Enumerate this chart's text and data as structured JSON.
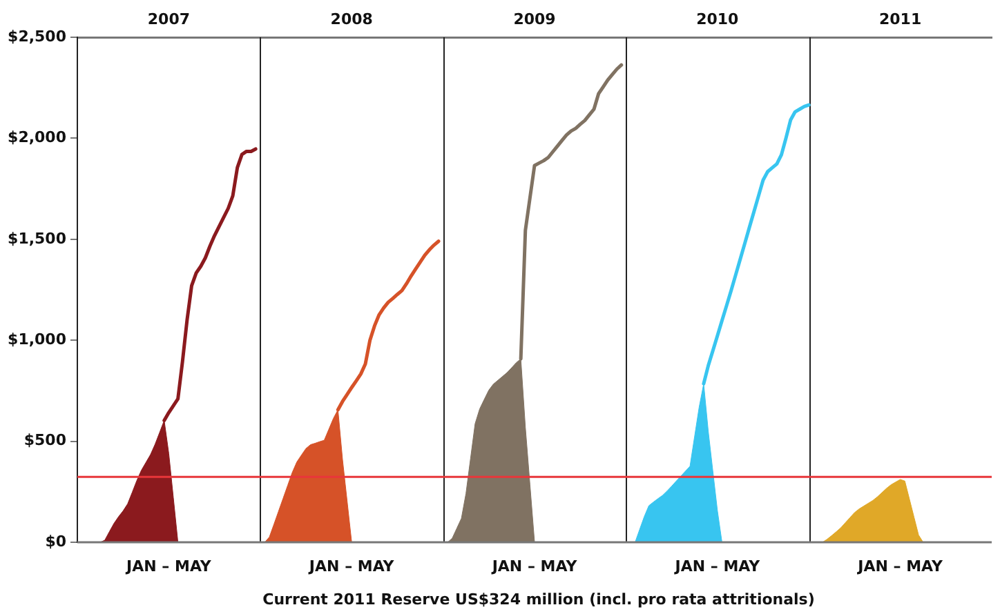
{
  "chart_data": {
    "type": "line",
    "xlabel": "JAN – MAY",
    "annotations": [
      "Current 2011 Reserve US$324 million (incl. pro rata attritionals)"
    ],
    "categories": [
      null,
      null,
      null,
      null,
      null,
      null,
      null,
      null,
      null,
      null,
      null,
      null,
      null,
      null,
      null,
      null,
      null,
      null,
      null,
      null,
      "2007",
      null,
      null,
      null,
      null,
      null,
      null,
      null,
      null,
      null,
      null,
      null,
      null,
      null,
      null,
      null,
      null,
      null,
      null,
      null,
      null,
      null,
      null,
      null,
      null,
      null,
      null,
      null,
      null,
      null,
      null,
      null,
      null,
      null,
      null,
      null,
      null,
      null,
      null,
      null,
      "2008",
      null,
      null,
      null,
      null,
      null,
      null,
      null,
      null,
      null,
      null,
      null,
      null,
      null,
      null,
      null,
      null,
      null,
      null,
      null,
      null,
      null,
      null,
      null,
      null,
      null,
      null,
      null,
      null,
      null,
      null,
      null,
      null,
      null,
      null,
      null,
      null,
      null,
      null,
      null,
      "2009",
      null,
      null,
      null,
      null,
      null,
      null,
      null,
      null,
      null,
      null,
      null,
      null,
      null,
      null,
      null,
      null,
      null,
      null,
      null,
      null,
      null,
      null,
      null,
      null,
      null,
      null,
      null,
      null,
      null,
      null,
      null,
      null,
      null,
      null,
      null,
      null,
      null,
      null,
      null,
      "2010",
      null,
      null,
      null,
      null,
      null,
      null,
      null,
      null,
      null,
      null,
      null,
      null,
      null,
      null,
      null,
      null,
      null,
      null,
      null,
      null,
      null,
      null,
      null,
      null,
      null,
      null,
      null,
      null,
      null,
      null,
      null,
      null,
      null,
      null,
      null,
      null,
      null,
      null,
      null,
      "2011",
      null,
      null,
      null,
      null,
      null,
      null,
      null,
      null,
      null,
      null,
      null,
      null,
      null,
      null,
      null,
      null,
      null,
      null,
      null,
      null
    ],
    "ylim": [
      0,
      2500
    ],
    "yticks": [
      {
        "value": 0,
        "label": "$0"
      },
      {
        "value": 500,
        "label": "$500"
      },
      {
        "value": 1000,
        "label": "$1,000"
      },
      {
        "value": 1500,
        "label": "$1,500"
      },
      {
        "value": 2000,
        "label": "$2,000"
      },
      {
        "value": 2500,
        "label": "$2,500"
      }
    ],
    "ref_lines": [
      {
        "axis": "y",
        "value": 324,
        "color": "#e8363a"
      }
    ],
    "series": [
      {
        "type": "area",
        "color": "#8b1a1e",
        "values": [
          null,
          null,
          null,
          null,
          null,
          0,
          10,
          52,
          93,
          126,
          155,
          190,
          247,
          305,
          356,
          395,
          434,
          485,
          544,
          603,
          439,
          220,
          0,
          null,
          null,
          null,
          null,
          null,
          null,
          null,
          null,
          null,
          null,
          null,
          null,
          null,
          null,
          null,
          null,
          null,
          null,
          null,
          null,
          null,
          null,
          null,
          null,
          null,
          null,
          null,
          null,
          null,
          null,
          null,
          null,
          null,
          null,
          null,
          null,
          null,
          null,
          null,
          null,
          null,
          null,
          null,
          null,
          null,
          null,
          null,
          null,
          null,
          null,
          null,
          null,
          null,
          null,
          null,
          null,
          null,
          null,
          null,
          null,
          null,
          null,
          null,
          null,
          null,
          null,
          null,
          null,
          null,
          null,
          null,
          null,
          null,
          null,
          null,
          null,
          null,
          null,
          null,
          null,
          null,
          null,
          null,
          null,
          null,
          null,
          null,
          null,
          null,
          null,
          null,
          null,
          null,
          null,
          null,
          null,
          null,
          null,
          null,
          null,
          null,
          null,
          null,
          null,
          null,
          null,
          null,
          null,
          null,
          null,
          null,
          null,
          null,
          null,
          null,
          null,
          null,
          null,
          null,
          null,
          null,
          null,
          null,
          null,
          null,
          null,
          null,
          null,
          null,
          null,
          null,
          null,
          null,
          null,
          null,
          null,
          null,
          null,
          null,
          null,
          null,
          null,
          null,
          null,
          null,
          null,
          null,
          null,
          null,
          null,
          null,
          null,
          null,
          null,
          null,
          null,
          null,
          null,
          null,
          null,
          null,
          null,
          null,
          null,
          null,
          null,
          null,
          null,
          null,
          null,
          null,
          null,
          null,
          null,
          null,
          null,
          null,
          null
        ]
      },
      {
        "type": "line",
        "color": "#8b1a1e",
        "values": [
          null,
          null,
          null,
          null,
          null,
          null,
          null,
          null,
          null,
          null,
          null,
          null,
          null,
          null,
          null,
          null,
          null,
          null,
          null,
          603,
          642,
          676,
          710,
          895,
          1100,
          1270,
          1333,
          1366,
          1408,
          1466,
          1518,
          1563,
          1608,
          1653,
          1715,
          1855,
          1920,
          1935,
          1935,
          1947,
          null,
          null,
          null,
          null,
          null,
          null,
          null,
          null,
          null,
          null,
          null,
          null,
          null,
          null,
          null,
          null,
          null,
          null,
          null,
          null,
          null,
          null,
          null,
          null,
          null,
          null,
          null,
          null,
          null,
          null,
          null,
          null,
          null,
          null,
          null,
          null,
          null,
          null,
          null,
          null,
          null,
          null,
          null,
          null,
          null,
          null,
          null,
          null,
          null,
          null,
          null,
          null,
          null,
          null,
          null,
          null,
          null,
          null,
          null,
          null,
          null,
          null,
          null,
          null,
          null,
          null,
          null,
          null,
          null,
          null,
          null,
          null,
          null,
          null,
          null,
          null,
          null,
          null,
          null,
          null,
          null,
          null,
          null,
          null,
          null,
          null,
          null,
          null,
          null,
          null,
          null,
          null,
          null,
          null,
          null,
          null,
          null,
          null,
          null,
          null,
          null,
          null,
          null,
          null,
          null,
          null,
          null,
          null,
          null,
          null,
          null,
          null,
          null,
          null,
          null,
          null,
          null,
          null,
          null,
          null,
          null,
          null,
          null,
          null,
          null,
          null,
          null,
          null,
          null,
          null,
          null,
          null,
          null,
          null,
          null,
          null,
          null,
          null,
          null,
          null,
          null,
          null,
          null,
          null,
          null,
          null,
          null,
          null,
          null,
          null,
          null,
          null,
          null,
          null,
          null,
          null,
          null,
          null,
          null,
          null,
          null
        ]
      },
      {
        "type": "area",
        "color": "#d65228",
        "values": [
          null,
          null,
          null,
          null,
          null,
          null,
          null,
          null,
          null,
          null,
          null,
          null,
          null,
          null,
          null,
          null,
          null,
          null,
          null,
          null,
          null,
          null,
          null,
          null,
          null,
          null,
          null,
          null,
          null,
          null,
          null,
          null,
          null,
          null,
          null,
          null,
          null,
          null,
          null,
          null,
          null,
          0,
          26,
          89,
          153,
          217,
          281,
          345,
          397,
          431,
          464,
          483,
          490,
          498,
          505,
          559,
          613,
          656,
          410,
          205,
          0,
          null,
          null,
          null,
          null,
          null,
          null,
          null,
          null,
          null,
          null,
          null,
          null,
          null,
          null,
          null,
          null,
          null,
          null,
          null,
          null,
          null,
          null,
          null,
          null,
          null,
          null,
          null,
          null,
          null,
          null,
          null,
          null,
          null,
          null,
          null,
          null,
          null,
          null,
          null,
          null,
          null,
          null,
          null,
          null,
          null,
          null,
          null,
          null,
          null,
          null,
          null,
          null,
          null,
          null,
          null,
          null,
          null,
          null,
          null,
          null,
          null,
          null,
          null,
          null,
          null,
          null,
          null,
          null,
          null,
          null,
          null,
          null,
          null,
          null,
          null,
          null,
          null,
          null,
          null,
          null,
          null,
          null,
          null,
          null,
          null,
          null,
          null,
          null,
          null,
          null,
          null,
          null,
          null,
          null,
          null,
          null,
          null,
          null,
          null,
          null,
          null,
          null,
          null,
          null,
          null,
          null,
          null,
          null,
          null,
          null,
          null,
          null,
          null,
          null,
          null,
          null,
          null,
          null,
          null,
          null,
          null,
          null,
          null,
          null,
          null,
          null,
          null,
          null,
          null,
          null,
          null,
          null,
          null,
          null,
          null,
          null,
          null,
          null,
          null,
          null
        ]
      },
      {
        "type": "line",
        "color": "#d65228",
        "values": [
          null,
          null,
          null,
          null,
          null,
          null,
          null,
          null,
          null,
          null,
          null,
          null,
          null,
          null,
          null,
          null,
          null,
          null,
          null,
          null,
          null,
          null,
          null,
          null,
          null,
          null,
          null,
          null,
          null,
          null,
          null,
          null,
          null,
          null,
          null,
          null,
          null,
          null,
          null,
          null,
          null,
          null,
          null,
          null,
          null,
          null,
          null,
          null,
          null,
          null,
          null,
          null,
          null,
          null,
          null,
          null,
          null,
          656,
          697,
          731,
          766,
          799,
          833,
          883,
          1000,
          1071,
          1126,
          1160,
          1188,
          1207,
          1227,
          1246,
          1280,
          1318,
          1353,
          1387,
          1421,
          1448,
          1471,
          1490,
          null,
          null,
          null,
          null,
          null,
          null,
          null,
          null,
          null,
          null,
          null,
          null,
          null,
          null,
          null,
          null,
          null,
          null,
          null,
          null,
          null,
          null,
          null,
          null,
          null,
          null,
          null,
          null,
          null,
          null,
          null,
          null,
          null,
          null,
          null,
          null,
          null,
          null,
          null,
          null,
          null,
          null,
          null,
          null,
          null,
          null,
          null,
          null,
          null,
          null,
          null,
          null,
          null,
          null,
          null,
          null,
          null,
          null,
          null,
          null,
          null,
          null,
          null,
          null,
          null,
          null,
          null,
          null,
          null,
          null,
          null,
          null,
          null,
          null,
          null,
          null,
          null,
          null,
          null,
          null,
          null,
          null,
          null,
          null,
          null,
          null,
          null,
          null,
          null,
          null,
          null,
          null,
          null,
          null,
          null,
          null,
          null,
          null,
          null,
          null,
          null,
          null,
          null,
          null,
          null,
          null,
          null,
          null,
          null,
          null,
          null,
          null,
          null,
          null,
          null,
          null,
          null,
          null,
          null,
          null,
          null
        ]
      },
      {
        "type": "area",
        "color": "#807262",
        "values": [
          null,
          null,
          null,
          null,
          null,
          null,
          null,
          null,
          null,
          null,
          null,
          null,
          null,
          null,
          null,
          null,
          null,
          null,
          null,
          null,
          null,
          null,
          null,
          null,
          null,
          null,
          null,
          null,
          null,
          null,
          null,
          null,
          null,
          null,
          null,
          null,
          null,
          null,
          null,
          null,
          null,
          null,
          null,
          null,
          null,
          null,
          null,
          null,
          null,
          null,
          null,
          null,
          null,
          null,
          null,
          null,
          null,
          null,
          null,
          null,
          null,
          null,
          null,
          null,
          null,
          null,
          null,
          null,
          null,
          null,
          null,
          null,
          null,
          null,
          null,
          null,
          null,
          null,
          null,
          null,
          null,
          0,
          20,
          69,
          118,
          241,
          414,
          587,
          660,
          707,
          753,
          783,
          802,
          821,
          840,
          864,
          889,
          908,
          568,
          284,
          0,
          null,
          null,
          null,
          null,
          null,
          null,
          null,
          null,
          null,
          null,
          null,
          null,
          null,
          null,
          null,
          null,
          null,
          null,
          null,
          null,
          null,
          null,
          null,
          null,
          null,
          null,
          null,
          null,
          null,
          null,
          null,
          null,
          null,
          null,
          null,
          null,
          null,
          null,
          null,
          null,
          null,
          null,
          null,
          null,
          null,
          null,
          null,
          null,
          null,
          null,
          null,
          null,
          null,
          null,
          null,
          null,
          null,
          null,
          null,
          null,
          null,
          null,
          null,
          null,
          null,
          null,
          null,
          null,
          null,
          null,
          null,
          null,
          null,
          null,
          null,
          null,
          null,
          null,
          null,
          null,
          null,
          null,
          null,
          null,
          null,
          null,
          null,
          null,
          null,
          null,
          null,
          null,
          null,
          null,
          null,
          null,
          null,
          null,
          null,
          null
        ]
      },
      {
        "type": "line",
        "color": "#807262",
        "values": [
          null,
          null,
          null,
          null,
          null,
          null,
          null,
          null,
          null,
          null,
          null,
          null,
          null,
          null,
          null,
          null,
          null,
          null,
          null,
          null,
          null,
          null,
          null,
          null,
          null,
          null,
          null,
          null,
          null,
          null,
          null,
          null,
          null,
          null,
          null,
          null,
          null,
          null,
          null,
          null,
          null,
          null,
          null,
          null,
          null,
          null,
          null,
          null,
          null,
          null,
          null,
          null,
          null,
          null,
          null,
          null,
          null,
          null,
          null,
          null,
          null,
          null,
          null,
          null,
          null,
          null,
          null,
          null,
          null,
          null,
          null,
          null,
          null,
          null,
          null,
          null,
          null,
          null,
          null,
          null,
          null,
          null,
          null,
          null,
          null,
          null,
          null,
          null,
          null,
          null,
          null,
          null,
          null,
          null,
          null,
          null,
          null,
          908,
          1544,
          1705,
          1865,
          1877,
          1889,
          1905,
          1933,
          1961,
          1989,
          2016,
          2036,
          2049,
          2069,
          2088,
          2116,
          2144,
          2220,
          2254,
          2288,
          2315,
          2342,
          2363,
          null,
          null,
          null,
          null,
          null,
          null,
          null,
          null,
          null,
          null,
          null,
          null,
          null,
          null,
          null,
          null,
          null,
          null,
          null,
          null,
          null,
          null,
          null,
          null,
          null,
          null,
          null,
          null,
          null,
          null,
          null,
          null,
          null,
          null,
          null,
          null,
          null,
          null,
          null,
          null,
          null,
          null,
          null,
          null,
          null,
          null,
          null,
          null,
          null,
          null,
          null,
          null,
          null,
          null,
          null,
          null,
          null,
          null,
          null,
          null,
          null,
          null,
          null,
          null,
          null,
          null,
          null,
          null,
          null,
          null,
          null,
          null,
          null,
          null,
          null,
          null,
          null,
          null,
          null,
          null,
          null
        ]
      },
      {
        "type": "area",
        "color": "#38c5f0",
        "values": [
          null,
          null,
          null,
          null,
          null,
          null,
          null,
          null,
          null,
          null,
          null,
          null,
          null,
          null,
          null,
          null,
          null,
          null,
          null,
          null,
          null,
          null,
          null,
          null,
          null,
          null,
          null,
          null,
          null,
          null,
          null,
          null,
          null,
          null,
          null,
          null,
          null,
          null,
          null,
          null,
          null,
          null,
          null,
          null,
          null,
          null,
          null,
          null,
          null,
          null,
          null,
          null,
          null,
          null,
          null,
          null,
          null,
          null,
          null,
          null,
          null,
          null,
          null,
          null,
          null,
          null,
          null,
          null,
          null,
          null,
          null,
          null,
          null,
          null,
          null,
          null,
          null,
          null,
          null,
          null,
          null,
          null,
          null,
          null,
          null,
          null,
          null,
          null,
          null,
          null,
          null,
          null,
          null,
          null,
          null,
          null,
          null,
          null,
          null,
          null,
          null,
          null,
          null,
          null,
          null,
          null,
          null,
          null,
          null,
          null,
          null,
          null,
          null,
          null,
          null,
          null,
          null,
          null,
          null,
          null,
          null,
          null,
          0,
          64,
          127,
          181,
          199,
          216,
          232,
          254,
          278,
          303,
          327,
          352,
          376,
          522,
          668,
          785,
          550,
          353,
          157,
          0,
          null,
          null,
          null,
          null,
          null,
          null,
          null,
          null,
          null,
          null,
          null,
          null,
          null,
          null,
          null,
          null,
          null,
          null,
          null,
          null,
          null,
          null,
          null,
          null,
          null,
          null,
          null,
          null,
          null,
          null,
          null,
          null,
          null,
          null,
          null,
          null,
          null,
          null,
          null,
          null,
          null,
          null,
          null,
          null,
          null,
          null,
          null,
          null,
          null,
          null,
          null,
          null,
          null,
          null,
          null,
          null,
          null,
          null,
          null
        ]
      },
      {
        "type": "line",
        "color": "#38c5f0",
        "values": [
          null,
          null,
          null,
          null,
          null,
          null,
          null,
          null,
          null,
          null,
          null,
          null,
          null,
          null,
          null,
          null,
          null,
          null,
          null,
          null,
          null,
          null,
          null,
          null,
          null,
          null,
          null,
          null,
          null,
          null,
          null,
          null,
          null,
          null,
          null,
          null,
          null,
          null,
          null,
          null,
          null,
          null,
          null,
          null,
          null,
          null,
          null,
          null,
          null,
          null,
          null,
          null,
          null,
          null,
          null,
          null,
          null,
          null,
          null,
          null,
          null,
          null,
          null,
          null,
          null,
          null,
          null,
          null,
          null,
          null,
          null,
          null,
          null,
          null,
          null,
          null,
          null,
          null,
          null,
          null,
          null,
          null,
          null,
          null,
          null,
          null,
          null,
          null,
          null,
          null,
          null,
          null,
          null,
          null,
          null,
          null,
          null,
          null,
          null,
          null,
          null,
          null,
          null,
          null,
          null,
          null,
          null,
          null,
          null,
          null,
          null,
          null,
          null,
          null,
          null,
          null,
          null,
          null,
          null,
          null,
          null,
          null,
          null,
          null,
          null,
          null,
          null,
          null,
          null,
          null,
          null,
          null,
          null,
          null,
          null,
          null,
          null,
          785,
          874,
          948,
          1022,
          1097,
          1171,
          1246,
          1324,
          1402,
          1480,
          1559,
          1637,
          1715,
          1793,
          1835,
          1854,
          1873,
          1918,
          2001,
          2090,
          2131,
          2144,
          2157,
          2165,
          null,
          null,
          null,
          null,
          null,
          null,
          null,
          null,
          null,
          null,
          null,
          null,
          null,
          null,
          null,
          null,
          null,
          null,
          null,
          null,
          null,
          null,
          null,
          null,
          null,
          null,
          null,
          null,
          null,
          null,
          null,
          null,
          null,
          null,
          null,
          null,
          null,
          null,
          null,
          null
        ]
      },
      {
        "type": "area",
        "color": "#e0a828",
        "values": [
          null,
          null,
          null,
          null,
          null,
          null,
          null,
          null,
          null,
          null,
          null,
          null,
          null,
          null,
          null,
          null,
          null,
          null,
          null,
          null,
          null,
          null,
          null,
          null,
          null,
          null,
          null,
          null,
          null,
          null,
          null,
          null,
          null,
          null,
          null,
          null,
          null,
          null,
          null,
          null,
          null,
          null,
          null,
          null,
          null,
          null,
          null,
          null,
          null,
          null,
          null,
          null,
          null,
          null,
          null,
          null,
          null,
          null,
          null,
          null,
          null,
          null,
          null,
          null,
          null,
          null,
          null,
          null,
          null,
          null,
          null,
          null,
          null,
          null,
          null,
          null,
          null,
          null,
          null,
          null,
          null,
          null,
          null,
          null,
          null,
          null,
          null,
          null,
          null,
          null,
          null,
          null,
          null,
          null,
          null,
          null,
          null,
          null,
          null,
          null,
          null,
          null,
          null,
          null,
          null,
          null,
          null,
          null,
          null,
          null,
          null,
          null,
          null,
          null,
          null,
          null,
          null,
          null,
          null,
          null,
          null,
          null,
          null,
          null,
          null,
          null,
          null,
          null,
          null,
          null,
          null,
          null,
          null,
          null,
          null,
          null,
          null,
          null,
          null,
          null,
          null,
          null,
          null,
          null,
          null,
          null,
          null,
          null,
          null,
          null,
          null,
          null,
          null,
          null,
          null,
          null,
          null,
          null,
          null,
          null,
          null,
          null,
          null,
          0,
          15,
          33,
          52,
          72,
          97,
          122,
          147,
          165,
          179,
          193,
          207,
          225,
          246,
          267,
          285,
          298,
          311,
          303,
          214,
          125,
          36,
          0,
          null,
          null,
          null,
          null,
          null,
          null,
          null,
          null,
          null,
          null,
          null,
          null,
          null,
          null,
          null
        ]
      }
    ]
  }
}
